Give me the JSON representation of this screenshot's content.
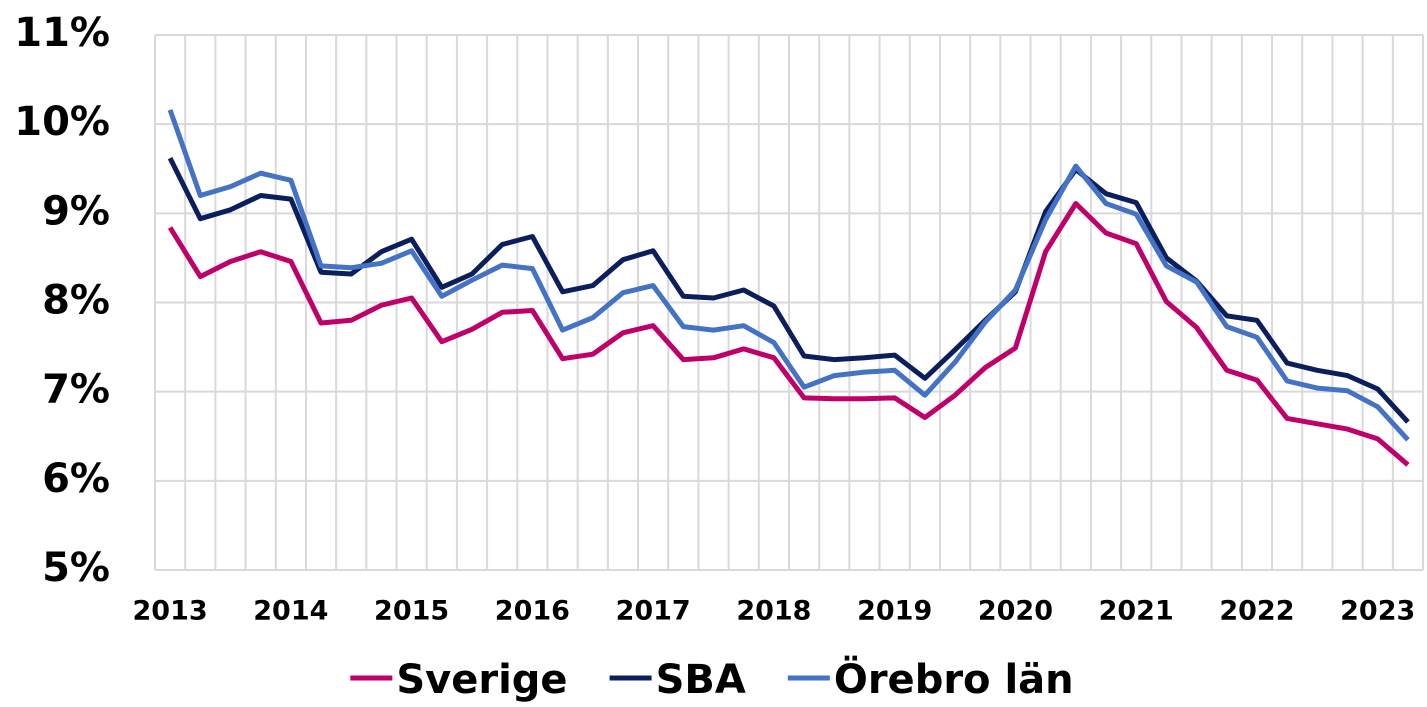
{
  "chart_data": {
    "type": "line",
    "categories": [
      "2013",
      null,
      null,
      null,
      "2014",
      null,
      null,
      null,
      "2015",
      null,
      null,
      null,
      "2016",
      null,
      null,
      null,
      "2017",
      null,
      null,
      null,
      "2018",
      null,
      null,
      null,
      "2019",
      null,
      null,
      null,
      "2020",
      null,
      null,
      null,
      "2021",
      null,
      null,
      null,
      "2022",
      null,
      null,
      null,
      "2023",
      null
    ],
    "series": [
      {
        "name": "Sverige",
        "color": "#c0006a",
        "values": [
          8.84,
          8.29,
          8.46,
          8.57,
          8.46,
          7.77,
          7.8,
          7.97,
          8.05,
          7.56,
          7.7,
          7.89,
          7.91,
          7.37,
          7.42,
          7.66,
          7.74,
          7.36,
          7.38,
          7.48,
          7.38,
          6.93,
          6.92,
          6.92,
          6.93,
          6.71,
          6.96,
          7.27,
          7.49,
          8.57,
          9.11,
          8.78,
          8.66,
          8.01,
          7.72,
          7.24,
          7.13,
          6.7,
          6.64,
          6.58,
          6.47,
          6.18
        ]
      },
      {
        "name": "SBA",
        "color": "#0b1f5c",
        "values": [
          9.62,
          8.94,
          9.04,
          9.2,
          9.16,
          8.34,
          8.32,
          8.57,
          8.71,
          8.17,
          8.32,
          8.65,
          8.74,
          8.12,
          8.19,
          8.48,
          8.58,
          8.07,
          8.05,
          8.14,
          7.96,
          7.4,
          7.36,
          7.38,
          7.41,
          7.15,
          7.47,
          7.8,
          8.12,
          9.02,
          9.49,
          9.22,
          9.12,
          8.5,
          8.24,
          7.85,
          7.8,
          7.32,
          7.24,
          7.18,
          7.03,
          6.66
        ]
      },
      {
        "name": "Örebro län",
        "color": "#4472c4",
        "values": [
          10.16,
          9.2,
          9.3,
          9.45,
          9.37,
          8.41,
          8.39,
          8.44,
          8.58,
          8.07,
          8.25,
          8.42,
          8.38,
          7.69,
          7.83,
          8.11,
          8.19,
          7.73,
          7.69,
          7.74,
          7.55,
          7.05,
          7.18,
          7.22,
          7.24,
          6.96,
          7.33,
          7.78,
          8.14,
          8.93,
          9.53,
          9.11,
          8.99,
          8.41,
          8.23,
          7.73,
          7.61,
          7.12,
          7.04,
          7.01,
          6.83,
          6.46
        ]
      }
    ],
    "ylim": [
      5,
      11
    ],
    "yticks": [
      {
        "value": 5,
        "label": "5%"
      },
      {
        "value": 6,
        "label": "6%"
      },
      {
        "value": 7,
        "label": "7%"
      },
      {
        "value": 8,
        "label": "8%"
      },
      {
        "value": 9,
        "label": "9%"
      },
      {
        "value": 10,
        "label": "10%"
      },
      {
        "value": 11,
        "label": "11%"
      }
    ],
    "grid": true,
    "legend": "bottom"
  }
}
